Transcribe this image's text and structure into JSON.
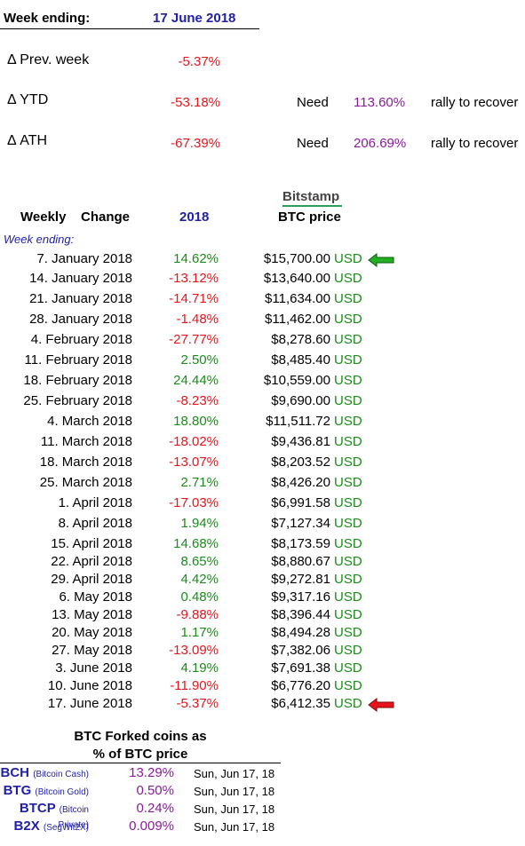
{
  "header": {
    "label": "Week ending:",
    "date": "17 June 2018"
  },
  "summary": [
    {
      "label": "Δ Prev. week",
      "value": "-5.37%",
      "need": "",
      "recover_pct": "",
      "rally": ""
    },
    {
      "label": "Δ YTD",
      "value": "-53.18%",
      "need": "Need",
      "recover_pct": "113.60%",
      "rally": "rally to recover"
    },
    {
      "label": "Δ ATH",
      "value": "-67.39%",
      "need": "Need",
      "recover_pct": "206.69%",
      "rally": "rally to recover"
    }
  ],
  "table": {
    "source": "Bitstamp",
    "col_weekly": "Weekly",
    "col_change": "Change",
    "col_year": "2018",
    "col_price": "BTC price",
    "week_ending_label": "Week ending:",
    "currency": "USD",
    "rows": [
      {
        "date": "7. January 2018",
        "change": "14.62%",
        "price": "$15,700.00",
        "dir": "pos",
        "arrow": "green"
      },
      {
        "date": "14. January 2018",
        "change": "-13.12%",
        "price": "$13,640.00",
        "dir": "neg",
        "arrow": ""
      },
      {
        "date": "21. January 2018",
        "change": "-14.71%",
        "price": "$11,634.00",
        "dir": "neg",
        "arrow": ""
      },
      {
        "date": "28. January 2018",
        "change": "-1.48%",
        "price": "$11,462.00",
        "dir": "neg",
        "arrow": ""
      },
      {
        "date": "4. February 2018",
        "change": "-27.77%",
        "price": "$8,278.60",
        "dir": "neg",
        "arrow": ""
      },
      {
        "date": "11. February 2018",
        "change": "2.50%",
        "price": "$8,485.40",
        "dir": "pos",
        "arrow": ""
      },
      {
        "date": "18. February 2018",
        "change": "24.44%",
        "price": "$10,559.00",
        "dir": "pos",
        "arrow": ""
      },
      {
        "date": "25. February 2018",
        "change": "-8.23%",
        "price": "$9,690.00",
        "dir": "neg",
        "arrow": ""
      },
      {
        "date": "4. March 2018",
        "change": "18.80%",
        "price": "$11,511.72",
        "dir": "pos",
        "arrow": ""
      },
      {
        "date": "11. March 2018",
        "change": "-18.02%",
        "price": "$9,436.81",
        "dir": "neg",
        "arrow": ""
      },
      {
        "date": "18. March 2018",
        "change": "-13.07%",
        "price": "$8,203.52",
        "dir": "neg",
        "arrow": ""
      },
      {
        "date": "25. March 2018",
        "change": "2.71%",
        "price": "$8,426.20",
        "dir": "pos",
        "arrow": ""
      },
      {
        "date": "1. April 2018",
        "change": "-17.03%",
        "price": "$6,991.58",
        "dir": "neg",
        "arrow": ""
      },
      {
        "date": "8. April 2018",
        "change": "1.94%",
        "price": "$7,127.34",
        "dir": "pos",
        "arrow": ""
      },
      {
        "date": "15. April 2018",
        "change": "14.68%",
        "price": "$8,173.59",
        "dir": "pos",
        "arrow": ""
      },
      {
        "date": "22. April 2018",
        "change": "8.65%",
        "price": "$8,880.67",
        "dir": "pos",
        "arrow": ""
      },
      {
        "date": "29. April 2018",
        "change": "4.42%",
        "price": "$9,272.81",
        "dir": "pos",
        "arrow": ""
      },
      {
        "date": "6. May 2018",
        "change": "0.48%",
        "price": "$9,317.16",
        "dir": "pos",
        "arrow": ""
      },
      {
        "date": "13. May 2018",
        "change": "-9.88%",
        "price": "$8,396.44",
        "dir": "neg",
        "arrow": ""
      },
      {
        "date": "20. May 2018",
        "change": "1.17%",
        "price": "$8,494.28",
        "dir": "pos",
        "arrow": ""
      },
      {
        "date": "27. May 2018",
        "change": "-13.09%",
        "price": "$7,382.06",
        "dir": "neg",
        "arrow": ""
      },
      {
        "date": "3. June 2018",
        "change": "4.19%",
        "price": "$7,691.38",
        "dir": "pos",
        "arrow": ""
      },
      {
        "date": "10. June 2018",
        "change": "-11.90%",
        "price": "$6,776.20",
        "dir": "neg",
        "arrow": ""
      },
      {
        "date": "17. June 2018",
        "change": "-5.37%",
        "price": "$6,412.35",
        "dir": "neg",
        "arrow": "red"
      }
    ]
  },
  "forks": {
    "title_line1": "BTC Forked coins as",
    "title_line2": "% of BTC price",
    "rows": [
      {
        "symbol": "BCH",
        "full": "(Bitcoin Cash)",
        "pct": "13.29%",
        "date": "Sun, Jun 17, 18"
      },
      {
        "symbol": "BTG",
        "full": "(Bitcoin Gold)",
        "pct": "0.50%",
        "date": "Sun, Jun 17, 18"
      },
      {
        "symbol": "BTCP",
        "full": "(Bitcoin Private)",
        "pct": "0.24%",
        "date": "Sun, Jun 17, 18"
      },
      {
        "symbol": "B2X",
        "full": "(SegWit2X)",
        "pct": "0.009%",
        "date": "Sun, Jun 17, 18"
      }
    ]
  },
  "colors": {
    "positive": "#1a8c1a",
    "negative": "#e8141b",
    "accent_blue": "#1f1fa8",
    "purple": "#8a1a9c"
  },
  "icons": {
    "up_arrow": "green-left-arrow-icon",
    "down_arrow": "red-left-arrow-icon"
  }
}
